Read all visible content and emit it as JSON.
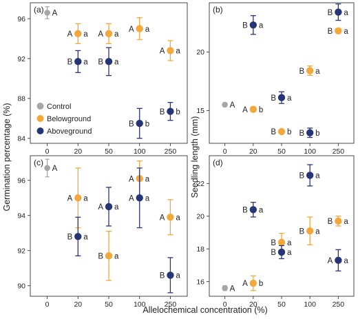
{
  "figure": {
    "xlabel": "Allelochemical concentration (%)",
    "ylabel_left": "Germination percentage (%)",
    "ylabel_right": "Seedling length (mm)"
  },
  "colors": {
    "Control": "#a6a6a6",
    "Belowground": "#f2a83b",
    "Aboveground": "#263576"
  },
  "legend": {
    "items": [
      {
        "name": "Control",
        "color": "#a6a6a6"
      },
      {
        "name": "Belowground",
        "color": "#f2a83b"
      },
      {
        "name": "Aboveground",
        "color": "#263576"
      }
    ],
    "placement": "lower-left of panel (a)"
  },
  "chart_data": [
    {
      "panel": "(a)",
      "type": "scatter",
      "x_categories": [
        "0",
        "20",
        "50",
        "100",
        "250"
      ],
      "ylim": [
        83.5,
        97.6
      ],
      "yticks": [
        84,
        88,
        92,
        96
      ],
      "ylabel": "Germination percentage (%)",
      "points": [
        {
          "series": "Control",
          "x": "0",
          "y": 96.6,
          "err": 0.6,
          "label": "A"
        },
        {
          "series": "Belowground",
          "x": "20",
          "y": 94.5,
          "err": 1.0,
          "label": "A a"
        },
        {
          "series": "Aboveground",
          "x": "20",
          "y": 91.7,
          "err": 1.1,
          "label": "B a"
        },
        {
          "series": "Belowground",
          "x": "50",
          "y": 94.5,
          "err": 1.0,
          "label": "A a"
        },
        {
          "series": "Aboveground",
          "x": "50",
          "y": 91.7,
          "err": 1.4,
          "label": "B a"
        },
        {
          "series": "Belowground",
          "x": "100",
          "y": 95.0,
          "err": 1.1,
          "label": "A a"
        },
        {
          "series": "Aboveground",
          "x": "100",
          "y": 85.5,
          "err": 1.5,
          "label": "B b"
        },
        {
          "series": "Belowground",
          "x": "250",
          "y": 92.8,
          "err": 1.0,
          "label": "A a"
        },
        {
          "series": "Aboveground",
          "x": "250",
          "y": 86.7,
          "err": 0.9,
          "label": "B b"
        }
      ]
    },
    {
      "panel": "(b)",
      "type": "scatter",
      "x_categories": [
        "0",
        "20",
        "50",
        "100",
        "250"
      ],
      "ylim": [
        12.2,
        24.2
      ],
      "yticks": [
        15,
        20
      ],
      "ylabel": "Seedling length (mm)",
      "points": [
        {
          "series": "Control",
          "x": "0",
          "y": 15.5,
          "err": 0.15,
          "label": "A"
        },
        {
          "series": "Aboveground",
          "x": "20",
          "y": 22.3,
          "err": 0.8,
          "label": "B a"
        },
        {
          "series": "Belowground",
          "x": "20",
          "y": 15.1,
          "err": 0.2,
          "label": "A b"
        },
        {
          "series": "Aboveground",
          "x": "50",
          "y": 16.1,
          "err": 0.5,
          "label": "B a"
        },
        {
          "series": "Belowground",
          "x": "50",
          "y": 13.2,
          "err": 0.15,
          "label": "B b"
        },
        {
          "series": "Belowground",
          "x": "100",
          "y": 18.4,
          "err": 0.4,
          "label": "B a"
        },
        {
          "series": "Aboveground",
          "x": "100",
          "y": 13.1,
          "err": 0.4,
          "label": "B b"
        },
        {
          "series": "Aboveground",
          "x": "250",
          "y": 23.4,
          "err": 0.7,
          "label": "B a"
        },
        {
          "series": "Belowground",
          "x": "250",
          "y": 21.8,
          "err": 0.2,
          "label": "B a"
        }
      ]
    },
    {
      "panel": "(c)",
      "type": "scatter",
      "x_categories": [
        "0",
        "20",
        "50",
        "100",
        "250"
      ],
      "ylim": [
        89.4,
        97.4
      ],
      "yticks": [
        90,
        92,
        94,
        96
      ],
      "ylabel": "Germination percentage (%)",
      "points": [
        {
          "series": "Control",
          "x": "0",
          "y": 96.7,
          "err": 0.5,
          "label": "A"
        },
        {
          "series": "Belowground",
          "x": "20",
          "y": 95.0,
          "err": 1.7,
          "label": "A a"
        },
        {
          "series": "Aboveground",
          "x": "20",
          "y": 92.8,
          "err": 1.1,
          "label": "B a"
        },
        {
          "series": "Aboveground",
          "x": "50",
          "y": 94.5,
          "err": 1.1,
          "label": "A a"
        },
        {
          "series": "Belowground",
          "x": "50",
          "y": 91.7,
          "err": 1.4,
          "label": "B a"
        },
        {
          "series": "Belowground",
          "x": "100",
          "y": 96.1,
          "err": 1.0,
          "label": "A a"
        },
        {
          "series": "Aboveground",
          "x": "100",
          "y": 95.0,
          "err": 1.7,
          "label": "A a"
        },
        {
          "series": "Belowground",
          "x": "250",
          "y": 93.9,
          "err": 1.0,
          "label": "A a"
        },
        {
          "series": "Aboveground",
          "x": "250",
          "y": 90.6,
          "err": 1.0,
          "label": "B a"
        }
      ]
    },
    {
      "panel": "(d)",
      "type": "scatter",
      "x_categories": [
        "0",
        "20",
        "50",
        "100",
        "250"
      ],
      "ylim": [
        15.1,
        23.7
      ],
      "yticks": [
        16,
        18,
        20,
        22
      ],
      "ylabel": "Seedling length (mm)",
      "points": [
        {
          "series": "Control",
          "x": "0",
          "y": 15.6,
          "err": 0.15,
          "label": "A"
        },
        {
          "series": "Aboveground",
          "x": "20",
          "y": 20.4,
          "err": 0.45,
          "label": "B a"
        },
        {
          "series": "Belowground",
          "x": "20",
          "y": 15.9,
          "err": 0.45,
          "label": "A b"
        },
        {
          "series": "Belowground",
          "x": "50",
          "y": 18.4,
          "err": 0.55,
          "label": "B a"
        },
        {
          "series": "Aboveground",
          "x": "50",
          "y": 17.8,
          "err": 0.4,
          "label": "B a"
        },
        {
          "series": "Aboveground",
          "x": "100",
          "y": 22.5,
          "err": 0.65,
          "label": "B a"
        },
        {
          "series": "Belowground",
          "x": "100",
          "y": 19.1,
          "err": 0.85,
          "label": "B a"
        },
        {
          "series": "Belowground",
          "x": "250",
          "y": 19.7,
          "err": 0.3,
          "label": "B a"
        },
        {
          "series": "Aboveground",
          "x": "250",
          "y": 17.3,
          "err": 0.65,
          "label": "A a"
        }
      ]
    }
  ]
}
